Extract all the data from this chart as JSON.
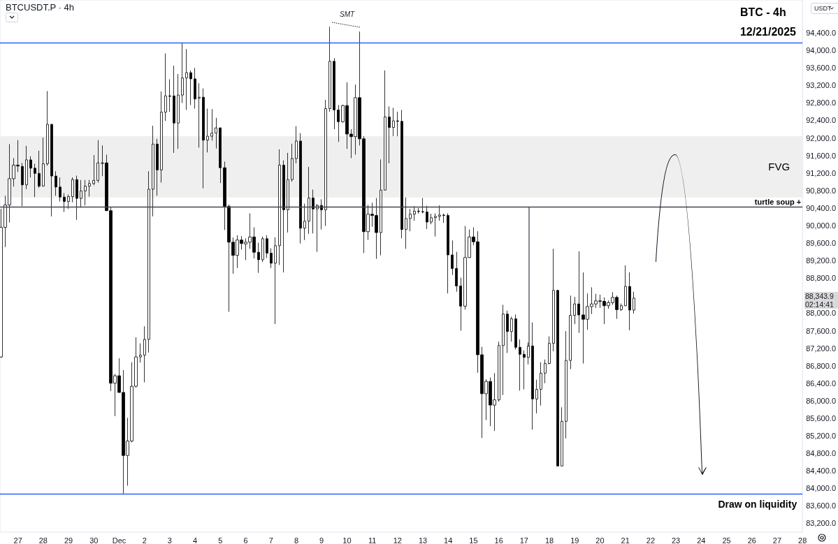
{
  "chart_data": {
    "type": "candlestick",
    "title": "BTC - 4h",
    "subtitle": "12/21/2025",
    "annotations": [
      "BTCUSDT.P · 4h",
      "SMT",
      "USDT",
      "88,343.9",
      "02:14:41"
    ],
    "x": [
      "2025-11-26T08:00",
      "2025-11-26T12:00",
      "2025-11-26T16:00",
      "2025-11-26T20:00",
      "2025-11-27T00:00",
      "2025-11-27T04:00",
      "2025-11-27T08:00",
      "2025-11-27T12:00",
      "2025-11-27T16:00",
      "2025-11-27T20:00",
      "2025-11-28T00:00",
      "2025-11-28T04:00",
      "2025-11-28T08:00",
      "2025-11-28T12:00",
      "2025-11-28T16:00",
      "2025-11-28T20:00",
      "2025-11-29T00:00",
      "2025-11-29T04:00",
      "2025-11-29T08:00",
      "2025-11-29T12:00",
      "2025-11-29T16:00",
      "2025-11-29T20:00",
      "2025-11-30T00:00",
      "2025-11-30T04:00",
      "2025-11-30T08:00",
      "2025-11-30T12:00",
      "2025-11-30T16:00",
      "2025-11-30T20:00",
      "2025-12-01T00:00",
      "2025-12-01T04:00",
      "2025-12-01T08:00",
      "2025-12-01T12:00",
      "2025-12-01T16:00",
      "2025-12-01T20:00",
      "2025-12-02T00:00",
      "2025-12-02T04:00",
      "2025-12-02T08:00",
      "2025-12-02T12:00",
      "2025-12-02T16:00",
      "2025-12-02T20:00",
      "2025-12-03T00:00",
      "2025-12-03T04:00",
      "2025-12-03T08:00",
      "2025-12-03T12:00",
      "2025-12-03T16:00",
      "2025-12-03T20:00",
      "2025-12-04T00:00",
      "2025-12-04T04:00",
      "2025-12-04T08:00",
      "2025-12-04T12:00",
      "2025-12-04T16:00",
      "2025-12-04T20:00",
      "2025-12-05T00:00",
      "2025-12-05T04:00",
      "2025-12-05T08:00",
      "2025-12-05T12:00",
      "2025-12-05T16:00",
      "2025-12-05T20:00",
      "2025-12-06T00:00",
      "2025-12-06T04:00",
      "2025-12-06T08:00",
      "2025-12-06T12:00",
      "2025-12-06T16:00",
      "2025-12-06T20:00",
      "2025-12-07T00:00",
      "2025-12-07T04:00",
      "2025-12-07T08:00",
      "2025-12-07T12:00",
      "2025-12-07T16:00",
      "2025-12-07T20:00",
      "2025-12-08T00:00",
      "2025-12-08T04:00",
      "2025-12-08T08:00",
      "2025-12-08T12:00",
      "2025-12-08T16:00",
      "2025-12-08T20:00",
      "2025-12-09T00:00",
      "2025-12-09T04:00",
      "2025-12-09T08:00",
      "2025-12-09T12:00",
      "2025-12-09T16:00",
      "2025-12-09T20:00",
      "2025-12-10T00:00",
      "2025-12-10T04:00",
      "2025-12-10T08:00",
      "2025-12-10T12:00",
      "2025-12-10T16:00",
      "2025-12-10T20:00",
      "2025-12-11T00:00",
      "2025-12-11T04:00",
      "2025-12-11T08:00",
      "2025-12-11T12:00",
      "2025-12-11T16:00",
      "2025-12-11T20:00",
      "2025-12-12T00:00",
      "2025-12-12T04:00",
      "2025-12-12T08:00",
      "2025-12-12T12:00",
      "2025-12-12T16:00",
      "2025-12-12T20:00",
      "2025-12-13T00:00",
      "2025-12-13T04:00",
      "2025-12-13T08:00",
      "2025-12-13T12:00",
      "2025-12-13T16:00",
      "2025-12-13T20:00",
      "2025-12-14T00:00",
      "2025-12-14T04:00",
      "2025-12-14T08:00",
      "2025-12-14T12:00",
      "2025-12-14T16:00",
      "2025-12-14T20:00",
      "2025-12-15T00:00",
      "2025-12-15T04:00",
      "2025-12-15T08:00",
      "2025-12-15T12:00",
      "2025-12-15T16:00",
      "2025-12-15T20:00",
      "2025-12-16T00:00",
      "2025-12-16T04:00",
      "2025-12-16T08:00",
      "2025-12-16T12:00",
      "2025-12-16T16:00",
      "2025-12-16T20:00",
      "2025-12-17T00:00",
      "2025-12-17T04:00",
      "2025-12-17T08:00",
      "2025-12-17T12:00",
      "2025-12-17T16:00",
      "2025-12-17T20:00",
      "2025-12-18T00:00",
      "2025-12-18T04:00",
      "2025-12-18T08:00",
      "2025-12-18T12:00",
      "2025-12-18T16:00",
      "2025-12-18T20:00",
      "2025-12-19T00:00",
      "2025-12-19T04:00",
      "2025-12-19T08:00",
      "2025-12-19T12:00",
      "2025-12-19T16:00",
      "2025-12-19T20:00",
      "2025-12-20T00:00",
      "2025-12-20T04:00",
      "2025-12-20T08:00",
      "2025-12-20T12:00",
      "2025-12-20T16:00",
      "2025-12-20T20:00",
      "2025-12-21T00:00",
      "2025-12-21T04:00",
      "2025-12-21T08:00"
    ],
    "ohlc": [
      [
        87000,
        90380,
        86980,
        89960
      ],
      [
        89960,
        90680,
        89510,
        90470
      ],
      [
        90470,
        91860,
        90070,
        91070
      ],
      [
        91070,
        91540,
        90890,
        91380
      ],
      [
        91380,
        91950,
        91220,
        91360
      ],
      [
        91350,
        91430,
        90440,
        90930
      ],
      [
        90930,
        91820,
        90830,
        91500
      ],
      [
        91500,
        91580,
        91100,
        91310
      ],
      [
        91310,
        91410,
        90650,
        91190
      ],
      [
        91190,
        91710,
        90860,
        90900
      ],
      [
        90900,
        92010,
        90890,
        91410
      ],
      [
        91410,
        93070,
        91370,
        92310
      ],
      [
        92310,
        92320,
        90210,
        91130
      ],
      [
        91130,
        91240,
        90680,
        90880
      ],
      [
        90880,
        91100,
        90550,
        90650
      ],
      [
        90650,
        90740,
        90310,
        90550
      ],
      [
        90550,
        90710,
        90380,
        90660
      ],
      [
        90660,
        91100,
        90530,
        91050
      ],
      [
        91050,
        91140,
        90130,
        90620
      ],
      [
        90620,
        91040,
        90410,
        90790
      ],
      [
        90790,
        91040,
        90460,
        90900
      ],
      [
        90900,
        91040,
        90660,
        90960
      ],
      [
        90960,
        91610,
        90920,
        91030
      ],
      [
        91030,
        91950,
        90980,
        91430
      ],
      [
        91420,
        91830,
        91130,
        91430
      ],
      [
        91430,
        91620,
        90330,
        90340
      ],
      [
        90340,
        90430,
        86220,
        86400
      ],
      [
        86400,
        86610,
        85650,
        86570
      ],
      [
        86570,
        86970,
        86180,
        86190
      ],
      [
        86190,
        86700,
        83880,
        84750
      ],
      [
        84750,
        85610,
        84060,
        85080
      ],
      [
        85080,
        86880,
        85050,
        86330
      ],
      [
        86330,
        87450,
        86300,
        87000
      ],
      [
        87000,
        87310,
        86870,
        87040
      ],
      [
        87040,
        87700,
        86420,
        87400
      ],
      [
        87400,
        91240,
        87100,
        90830
      ],
      [
        90830,
        92280,
        90210,
        91860
      ],
      [
        91860,
        91980,
        90680,
        91270
      ],
      [
        91270,
        93060,
        90980,
        92590
      ],
      [
        92590,
        93930,
        92390,
        92960
      ],
      [
        92960,
        93340,
        92600,
        92950
      ],
      [
        92960,
        93650,
        91660,
        92340
      ],
      [
        92340,
        93460,
        91750,
        92980
      ],
      [
        92980,
        94180,
        92800,
        93370
      ],
      [
        93370,
        94030,
        92640,
        93490
      ],
      [
        93490,
        93540,
        92750,
        93350
      ],
      [
        93350,
        93600,
        92670,
        92890
      ],
      [
        92910,
        93250,
        91780,
        92930
      ],
      [
        92930,
        93130,
        90850,
        91950
      ],
      [
        91950,
        92670,
        91670,
        92040
      ],
      [
        92040,
        92660,
        91940,
        92110
      ],
      [
        92110,
        92460,
        91760,
        92230
      ],
      [
        92230,
        92240,
        90970,
        91320
      ],
      [
        91320,
        91460,
        89900,
        90440
      ],
      [
        90440,
        90480,
        88030,
        89620
      ],
      [
        89620,
        89730,
        88900,
        89320
      ],
      [
        89320,
        89780,
        89030,
        89670
      ],
      [
        89670,
        89760,
        89450,
        89590
      ],
      [
        89580,
        89710,
        89210,
        89620
      ],
      [
        89620,
        90280,
        89470,
        89740
      ],
      [
        89740,
        89960,
        89250,
        89390
      ],
      [
        89390,
        89610,
        88920,
        89220
      ],
      [
        89220,
        89750,
        89170,
        89700
      ],
      [
        89700,
        89780,
        89260,
        89370
      ],
      [
        89370,
        89480,
        89030,
        89140
      ],
      [
        89140,
        89730,
        87750,
        89540
      ],
      [
        89540,
        91740,
        89100,
        91380
      ],
      [
        91380,
        91490,
        88930,
        90360
      ],
      [
        90360,
        91660,
        89840,
        91050
      ],
      [
        91050,
        91870,
        91000,
        91530
      ],
      [
        91530,
        92270,
        91420,
        91930
      ],
      [
        91930,
        92110,
        89590,
        89940
      ],
      [
        89940,
        90500,
        89670,
        90100
      ],
      [
        90100,
        91340,
        89810,
        90630
      ],
      [
        90630,
        90820,
        89820,
        90380
      ],
      [
        90380,
        90490,
        89400,
        90460
      ],
      [
        90460,
        90600,
        89910,
        90360
      ],
      [
        90360,
        92870,
        89990,
        92670
      ],
      [
        92670,
        94540,
        92600,
        93750
      ],
      [
        93750,
        93820,
        92200,
        92640
      ],
      [
        92640,
        92750,
        91910,
        92370
      ],
      [
        92370,
        92760,
        92350,
        92740
      ],
      [
        92740,
        93270,
        91750,
        92090
      ],
      [
        92090,
        92200,
        91540,
        92030
      ],
      [
        92030,
        93220,
        91620,
        92920
      ],
      [
        92920,
        94430,
        91830,
        91980
      ],
      [
        91980,
        92040,
        89370,
        89860
      ],
      [
        89860,
        90470,
        89670,
        90260
      ],
      [
        90260,
        90520,
        89970,
        90230
      ],
      [
        90230,
        90630,
        89240,
        89840
      ],
      [
        89840,
        91510,
        89320,
        90810
      ],
      [
        90810,
        93540,
        90800,
        92480
      ],
      [
        92480,
        92720,
        91420,
        92240
      ],
      [
        92240,
        92690,
        92040,
        92390
      ],
      [
        92390,
        92600,
        92040,
        92380
      ],
      [
        92380,
        92640,
        89710,
        89910
      ],
      [
        89910,
        90640,
        89470,
        90160
      ],
      [
        90160,
        90380,
        89870,
        90260
      ],
      [
        90260,
        90440,
        90110,
        90330
      ],
      [
        90330,
        90400,
        90270,
        90320
      ],
      [
        90320,
        90630,
        90280,
        90310
      ],
      [
        90310,
        90450,
        89920,
        90080
      ],
      [
        90080,
        90270,
        90030,
        90180
      ],
      [
        90180,
        90280,
        89750,
        90210
      ],
      [
        90210,
        90460,
        90110,
        90240
      ],
      [
        90240,
        90270,
        90060,
        90230
      ],
      [
        90230,
        90280,
        88450,
        89330
      ],
      [
        89330,
        89660,
        88870,
        89020
      ],
      [
        89020,
        89400,
        88490,
        88620
      ],
      [
        88620,
        88810,
        87600,
        88160
      ],
      [
        88160,
        89990,
        88080,
        89270
      ],
      [
        89270,
        89910,
        89260,
        89740
      ],
      [
        89740,
        89960,
        89550,
        89630
      ],
      [
        89630,
        89870,
        86640,
        87050
      ],
      [
        87050,
        87230,
        85150,
        86160
      ],
      [
        86160,
        86490,
        85560,
        86440
      ],
      [
        86440,
        86530,
        85420,
        85900
      ],
      [
        85900,
        86630,
        85310,
        86020
      ],
      [
        86020,
        87350,
        85980,
        87260
      ],
      [
        87260,
        88190,
        86130,
        87980
      ],
      [
        87980,
        88060,
        87090,
        87580
      ],
      [
        87580,
        87920,
        87350,
        87870
      ],
      [
        87870,
        87970,
        87170,
        87220
      ],
      [
        87220,
        87400,
        86230,
        87060
      ],
      [
        87060,
        87150,
        86260,
        86990
      ],
      [
        86990,
        87330,
        86830,
        87250
      ],
      [
        87250,
        87790,
        85340,
        86040
      ],
      [
        86040,
        86480,
        85710,
        86260
      ],
      [
        86260,
        86880,
        85890,
        86630
      ],
      [
        86630,
        86940,
        86400,
        86850
      ],
      [
        86850,
        87470,
        86830,
        87310
      ],
      [
        87310,
        89470,
        87130,
        88520
      ],
      [
        88520,
        88530,
        84500,
        84510
      ],
      [
        84510,
        85850,
        84500,
        85530
      ],
      [
        85530,
        87590,
        85140,
        86920
      ],
      [
        86920,
        88400,
        86720,
        87950
      ],
      [
        87950,
        88370,
        87750,
        88210
      ],
      [
        88210,
        89410,
        87550,
        87960
      ],
      [
        87960,
        88930,
        86850,
        87860
      ],
      [
        87860,
        88450,
        87620,
        88150
      ],
      [
        88150,
        88590,
        87980,
        88210
      ],
      [
        88210,
        88440,
        88120,
        88280
      ],
      [
        88280,
        88420,
        88120,
        88270
      ],
      [
        88270,
        88360,
        87750,
        88170
      ],
      [
        88170,
        88290,
        88100,
        88240
      ],
      [
        88240,
        88480,
        88190,
        88360
      ],
      [
        88360,
        88400,
        87870,
        88080
      ],
      [
        88080,
        88220,
        88050,
        88170
      ],
      [
        88170,
        89090,
        88160,
        88610
      ],
      [
        88610,
        88930,
        87610,
        88070
      ],
      [
        88070,
        88490,
        87990,
        88344
      ]
    ],
    "xlim": [
      "2025-11-26T07:00",
      "2025-12-28T00:00"
    ],
    "xticks": [
      {
        "value": "2025-11-27",
        "label": "27"
      },
      {
        "value": "2025-11-28",
        "label": "28"
      },
      {
        "value": "2025-11-29",
        "label": "29"
      },
      {
        "value": "2025-11-30",
        "label": "30"
      },
      {
        "value": "2025-12-01",
        "label": "Dec"
      },
      {
        "value": "2025-12-02",
        "label": "2"
      },
      {
        "value": "2025-12-03",
        "label": "3"
      },
      {
        "value": "2025-12-04",
        "label": "4"
      },
      {
        "value": "2025-12-05",
        "label": "5"
      },
      {
        "value": "2025-12-06",
        "label": "6"
      },
      {
        "value": "2025-12-07",
        "label": "7"
      },
      {
        "value": "2025-12-08",
        "label": "8"
      },
      {
        "value": "2025-12-09",
        "label": "9"
      },
      {
        "value": "2025-12-10",
        "label": "10"
      },
      {
        "value": "2025-12-11",
        "label": "11"
      },
      {
        "value": "2025-12-12",
        "label": "12"
      },
      {
        "value": "2025-12-13",
        "label": "13"
      },
      {
        "value": "2025-12-14",
        "label": "14"
      },
      {
        "value": "2025-12-15",
        "label": "15"
      },
      {
        "value": "2025-12-16",
        "label": "16"
      },
      {
        "value": "2025-12-17",
        "label": "17"
      },
      {
        "value": "2025-12-18",
        "label": "18"
      },
      {
        "value": "2025-12-19",
        "label": "19"
      },
      {
        "value": "2025-12-20",
        "label": "20"
      },
      {
        "value": "2025-12-21",
        "label": "21"
      },
      {
        "value": "2025-12-22",
        "label": "22"
      },
      {
        "value": "2025-12-23",
        "label": "23"
      },
      {
        "value": "2025-12-24",
        "label": "24"
      },
      {
        "value": "2025-12-25",
        "label": "25"
      },
      {
        "value": "2025-12-26",
        "label": "26"
      },
      {
        "value": "2025-12-27",
        "label": "27"
      },
      {
        "value": "2025-12-28",
        "label": "28"
      }
    ],
    "ylim": [
      83000,
      95150
    ],
    "yticks": [
      {
        "value": 83200,
        "label": "83,200.0"
      },
      {
        "value": 83600,
        "label": "83,600.0"
      },
      {
        "value": 84000,
        "label": "84,000.0"
      },
      {
        "value": 84400,
        "label": "84,400.0"
      },
      {
        "value": 84800,
        "label": "84,800.0"
      },
      {
        "value": 85200,
        "label": "85,200.0"
      },
      {
        "value": 85600,
        "label": "85,600.0"
      },
      {
        "value": 86000,
        "label": "86,000.0"
      },
      {
        "value": 86400,
        "label": "86,400.0"
      },
      {
        "value": 86800,
        "label": "86,800.0"
      },
      {
        "value": 87200,
        "label": "87,200.0"
      },
      {
        "value": 87600,
        "label": "87,600.0"
      },
      {
        "value": 88000,
        "label": "88,000.0"
      },
      {
        "value": 88800,
        "label": "88,800.0"
      },
      {
        "value": 89200,
        "label": "89,200.0"
      },
      {
        "value": 89600,
        "label": "89,600.0"
      },
      {
        "value": 90000,
        "label": "90,000.0"
      },
      {
        "value": 90400,
        "label": "90,400.0"
      },
      {
        "value": 90800,
        "label": "90,800.0"
      },
      {
        "value": 91200,
        "label": "91,200.0"
      },
      {
        "value": 91600,
        "label": "91,600.0"
      },
      {
        "value": 92000,
        "label": "92,000.0"
      },
      {
        "value": 92400,
        "label": "92,400.0"
      },
      {
        "value": 92800,
        "label": "92,800.0"
      },
      {
        "value": 93200,
        "label": "93,200.0"
      },
      {
        "value": 93600,
        "label": "93,600.0"
      },
      {
        "value": 94000,
        "label": "94,000.0"
      },
      {
        "value": 94400,
        "label": "94,400.0"
      }
    ],
    "ref_lines": [
      {
        "axis": "y",
        "value": 94180,
        "color": "#2962ff"
      },
      {
        "axis": "y",
        "value": 90420,
        "label": "turtle soup +",
        "color": "#434651"
      },
      {
        "axis": "y",
        "value": 83880,
        "label": "Draw on liquidity",
        "color": "#2962ff"
      }
    ],
    "bands": [
      {
        "axis": "y",
        "from": 90640,
        "to": 92040,
        "label": "FVG",
        "color": "#efefef"
      }
    ],
    "grid": false
  }
}
